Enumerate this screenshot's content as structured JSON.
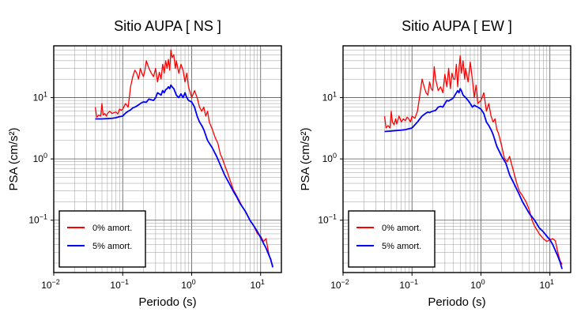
{
  "chart_data": [
    {
      "type": "line",
      "title": "Sitio AUPA [ NS ]",
      "xlabel": "Periodo (s)",
      "ylabel": "PSA (cm/s²)",
      "xscale": "log",
      "yscale": "log",
      "xlim": [
        0.01,
        20
      ],
      "ylim": [
        0.014,
        70
      ],
      "x_ticks": [
        0.01,
        0.1,
        1,
        10
      ],
      "x_tick_labels": [
        [
          "10",
          "−2"
        ],
        [
          "10",
          "−1"
        ],
        [
          "10",
          "0"
        ],
        [
          "10",
          "1"
        ]
      ],
      "y_ticks": [
        0.1,
        1,
        10
      ],
      "y_tick_labels": [
        [
          "10",
          "−1"
        ],
        [
          "10",
          "0"
        ],
        [
          "10",
          "1"
        ]
      ],
      "grid": true,
      "legend_position": "bottom-left",
      "series": [
        {
          "name": "0% amort.",
          "color": "#ff0000",
          "x": [
            0.04,
            0.042,
            0.045,
            0.048,
            0.05,
            0.052,
            0.055,
            0.058,
            0.06,
            0.065,
            0.07,
            0.075,
            0.08,
            0.085,
            0.09,
            0.095,
            0.1,
            0.11,
            0.12,
            0.13,
            0.14,
            0.15,
            0.16,
            0.17,
            0.18,
            0.19,
            0.2,
            0.21,
            0.22,
            0.24,
            0.26,
            0.28,
            0.3,
            0.32,
            0.34,
            0.36,
            0.38,
            0.4,
            0.42,
            0.44,
            0.46,
            0.48,
            0.5,
            0.52,
            0.55,
            0.58,
            0.6,
            0.65,
            0.7,
            0.75,
            0.8,
            0.85,
            0.9,
            1.0,
            1.1,
            1.2,
            1.3,
            1.4,
            1.5,
            1.6,
            1.7,
            1.8,
            2.0,
            2.2,
            2.4,
            2.6,
            2.8,
            3.0,
            3.3,
            3.6,
            4.0,
            4.5,
            5.0,
            5.5,
            6.0,
            7.0,
            8.0,
            9.0,
            10.0,
            11.0,
            12.0,
            13.0,
            14.0,
            15.0
          ],
          "y": [
            7.0,
            4.8,
            5.2,
            5.0,
            8.0,
            5.2,
            5.5,
            5.0,
            5.5,
            6.0,
            5.5,
            5.7,
            5.8,
            5.4,
            6.5,
            6.2,
            6.5,
            8.0,
            7.0,
            15,
            22,
            28,
            25,
            20,
            30,
            25,
            22,
            28,
            40,
            30,
            25,
            22,
            30,
            18,
            26,
            20,
            35,
            25,
            40,
            30,
            42,
            28,
            60,
            45,
            50,
            30,
            40,
            25,
            35,
            28,
            18,
            25,
            15,
            10,
            13,
            10,
            7,
            6,
            7,
            5,
            6,
            4,
            3,
            2.2,
            1.8,
            1.2,
            1.0,
            0.8,
            0.6,
            0.45,
            0.32,
            0.25,
            0.2,
            0.16,
            0.14,
            0.1,
            0.08,
            0.06,
            0.055,
            0.045,
            0.05,
            0.03,
            0.022,
            0.018
          ]
        },
        {
          "name": "5% amort.",
          "color": "#0000ff",
          "x": [
            0.04,
            0.05,
            0.06,
            0.07,
            0.08,
            0.09,
            0.1,
            0.11,
            0.12,
            0.13,
            0.14,
            0.15,
            0.16,
            0.17,
            0.18,
            0.19,
            0.2,
            0.22,
            0.24,
            0.26,
            0.28,
            0.3,
            0.32,
            0.34,
            0.36,
            0.38,
            0.4,
            0.42,
            0.44,
            0.46,
            0.48,
            0.5,
            0.52,
            0.55,
            0.6,
            0.65,
            0.7,
            0.75,
            0.8,
            0.85,
            0.9,
            1.0,
            1.1,
            1.2,
            1.3,
            1.4,
            1.5,
            1.7,
            2.0,
            2.3,
            2.6,
            3.0,
            3.5,
            4.0,
            4.5,
            5.0,
            6.0,
            7.0,
            8.0,
            9.0,
            10.0,
            11.0,
            12.0,
            13.0,
            14.0,
            15.0
          ],
          "y": [
            4.5,
            4.5,
            4.55,
            4.6,
            4.7,
            4.9,
            5.0,
            5.6,
            6.0,
            6.3,
            6.8,
            7.0,
            7.3,
            7.6,
            8.0,
            8.3,
            8.5,
            8.4,
            9.5,
            9.2,
            9.0,
            10,
            12,
            11.5,
            11,
            13,
            12,
            13.5,
            14,
            15,
            14,
            16,
            15,
            14,
            11,
            10,
            11.5,
            10,
            12,
            10,
            9,
            8.5,
            7,
            5,
            4,
            3.5,
            3,
            2,
            1.5,
            1.1,
            0.8,
            0.55,
            0.4,
            0.3,
            0.24,
            0.19,
            0.14,
            0.1,
            0.08,
            0.065,
            0.052,
            0.042,
            0.035,
            0.028,
            0.023,
            0.017
          ]
        }
      ]
    },
    {
      "type": "line",
      "title": "Sitio AUPA [ EW ]",
      "xlabel": "Periodo (s)",
      "ylabel": "PSA (cm/s²)",
      "xscale": "log",
      "yscale": "log",
      "xlim": [
        0.01,
        20
      ],
      "ylim": [
        0.014,
        70
      ],
      "x_ticks": [
        0.01,
        0.1,
        1,
        10
      ],
      "x_tick_labels": [
        [
          "10",
          "−2"
        ],
        [
          "10",
          "−1"
        ],
        [
          "10",
          "0"
        ],
        [
          "10",
          "1"
        ]
      ],
      "y_ticks": [
        0.1,
        1,
        10
      ],
      "y_tick_labels": [
        [
          "10",
          "−1"
        ],
        [
          "10",
          "0"
        ],
        [
          "10",
          "1"
        ]
      ],
      "grid": true,
      "legend_position": "bottom-left",
      "series": [
        {
          "name": "0% amort.",
          "color": "#ff0000",
          "x": [
            0.04,
            0.042,
            0.045,
            0.048,
            0.05,
            0.052,
            0.055,
            0.058,
            0.06,
            0.065,
            0.07,
            0.075,
            0.08,
            0.085,
            0.09,
            0.095,
            0.1,
            0.11,
            0.12,
            0.13,
            0.14,
            0.15,
            0.16,
            0.17,
            0.18,
            0.19,
            0.2,
            0.21,
            0.22,
            0.24,
            0.26,
            0.28,
            0.3,
            0.32,
            0.34,
            0.36,
            0.38,
            0.4,
            0.42,
            0.44,
            0.46,
            0.48,
            0.5,
            0.52,
            0.55,
            0.58,
            0.6,
            0.65,
            0.7,
            0.75,
            0.8,
            0.85,
            0.9,
            1.0,
            1.1,
            1.2,
            1.3,
            1.4,
            1.5,
            1.6,
            1.7,
            1.8,
            2.0,
            2.2,
            2.4,
            2.6,
            2.8,
            3.0,
            3.3,
            3.6,
            4.0,
            4.5,
            5.0,
            5.5,
            6.0,
            7.0,
            8.0,
            9.0,
            10.0,
            11.0,
            12.0,
            13.0,
            14.0,
            15.0
          ],
          "y": [
            5.0,
            3.2,
            3.5,
            3.2,
            6.0,
            4.0,
            3.6,
            4.5,
            3.7,
            5.0,
            4.0,
            4.5,
            4.2,
            4.8,
            4.5,
            4.0,
            5.0,
            4.6,
            6.0,
            11,
            20,
            15,
            12,
            11,
            18,
            14,
            13,
            32,
            20,
            13,
            15,
            12,
            24,
            15,
            30,
            14,
            25,
            20,
            20,
            35,
            15,
            30,
            48,
            25,
            40,
            20,
            30,
            18,
            38,
            20,
            10,
            16,
            8,
            9,
            12,
            6,
            8,
            5,
            4,
            4.5,
            3,
            2.6,
            1.6,
            1.0,
            0.9,
            1.1,
            0.8,
            0.6,
            0.4,
            0.3,
            0.25,
            0.2,
            0.15,
            0.1,
            0.08,
            0.06,
            0.05,
            0.045,
            0.048,
            0.05,
            0.046,
            0.03,
            0.022,
            0.019
          ]
        },
        {
          "name": "5% amort.",
          "color": "#0000ff",
          "x": [
            0.04,
            0.05,
            0.06,
            0.07,
            0.08,
            0.09,
            0.1,
            0.11,
            0.12,
            0.13,
            0.14,
            0.15,
            0.16,
            0.17,
            0.18,
            0.19,
            0.2,
            0.22,
            0.24,
            0.26,
            0.28,
            0.3,
            0.32,
            0.34,
            0.36,
            0.38,
            0.4,
            0.42,
            0.44,
            0.46,
            0.48,
            0.5,
            0.52,
            0.55,
            0.6,
            0.65,
            0.7,
            0.75,
            0.8,
            0.85,
            0.9,
            1.0,
            1.1,
            1.2,
            1.3,
            1.4,
            1.5,
            1.7,
            2.0,
            2.3,
            2.6,
            3.0,
            3.5,
            4.0,
            4.5,
            5.0,
            6.0,
            7.0,
            8.0,
            9.0,
            10.0,
            11.0,
            12.0,
            13.0,
            14.0,
            15.0
          ],
          "y": [
            2.8,
            2.85,
            2.9,
            2.95,
            3.0,
            3.1,
            3.2,
            3.6,
            4.0,
            4.5,
            5.0,
            5.3,
            5.6,
            5.8,
            5.7,
            5.9,
            6.0,
            6.2,
            7.0,
            7.2,
            7.0,
            8.0,
            9.0,
            8.8,
            9.2,
            9.5,
            10,
            11,
            12,
            13,
            12,
            14,
            13,
            11,
            10,
            9,
            8,
            7,
            7.5,
            7.2,
            7,
            6.5,
            5.5,
            4.0,
            3.5,
            3,
            2.5,
            1.6,
            1.1,
            0.85,
            0.55,
            0.4,
            0.28,
            0.2,
            0.16,
            0.13,
            0.1,
            0.075,
            0.065,
            0.055,
            0.048,
            0.04,
            0.032,
            0.026,
            0.021,
            0.016
          ]
        }
      ]
    }
  ]
}
